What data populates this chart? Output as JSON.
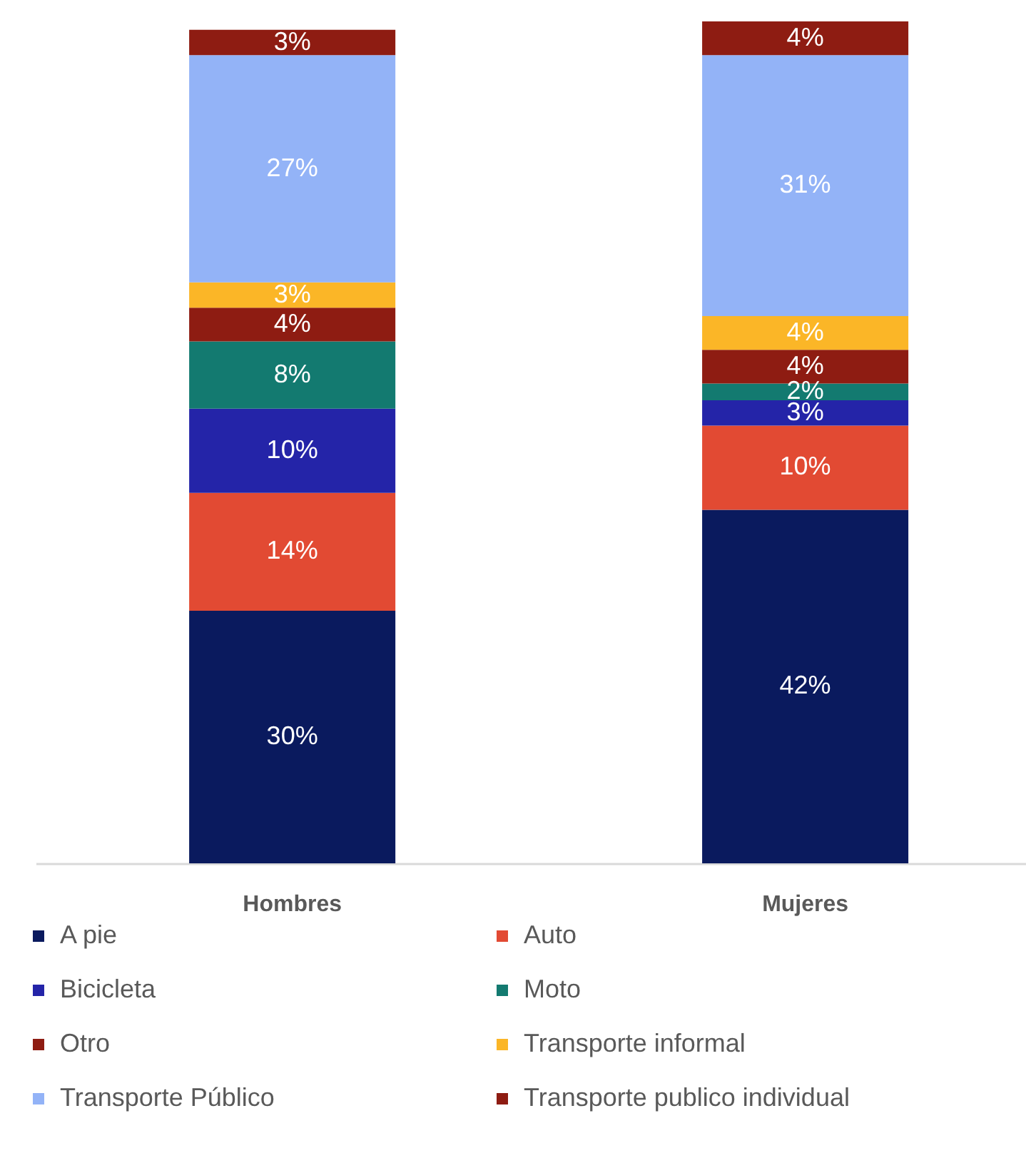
{
  "chart_data": {
    "type": "bar",
    "stacked": true,
    "legend": "bottom",
    "categories": [
      "Hombres",
      "Mujeres"
    ],
    "series": [
      {
        "name": "A pie",
        "color": "#0a1a5e",
        "values": [
          30,
          42
        ],
        "value_labels": [
          "30%",
          "42%"
        ]
      },
      {
        "name": "Auto",
        "color": "#e24a33",
        "values": [
          14,
          10
        ],
        "value_labels": [
          "14%",
          "10%"
        ]
      },
      {
        "name": "Bicicleta",
        "color": "#2424a8",
        "values": [
          10,
          3
        ],
        "value_labels": [
          "10%",
          "3%"
        ]
      },
      {
        "name": "Moto",
        "color": "#137a70",
        "values": [
          8,
          2
        ],
        "value_labels": [
          "8%",
          "2%"
        ]
      },
      {
        "name": "Otro",
        "color": "#8e1c12",
        "values": [
          4,
          4
        ],
        "value_labels": [
          "4%",
          "4%"
        ]
      },
      {
        "name": "Transporte informal",
        "color": "#fbb627",
        "values": [
          3,
          4
        ],
        "value_labels": [
          "3%",
          "4%"
        ]
      },
      {
        "name": "Transporte Público",
        "color": "#93b3f7",
        "values": [
          27,
          31
        ],
        "value_labels": [
          "27%",
          "31%"
        ]
      },
      {
        "name": "Transporte publico individual",
        "color": "#8e1c12",
        "values": [
          3,
          4
        ],
        "value_labels": [
          "3%",
          "4%"
        ]
      }
    ]
  }
}
